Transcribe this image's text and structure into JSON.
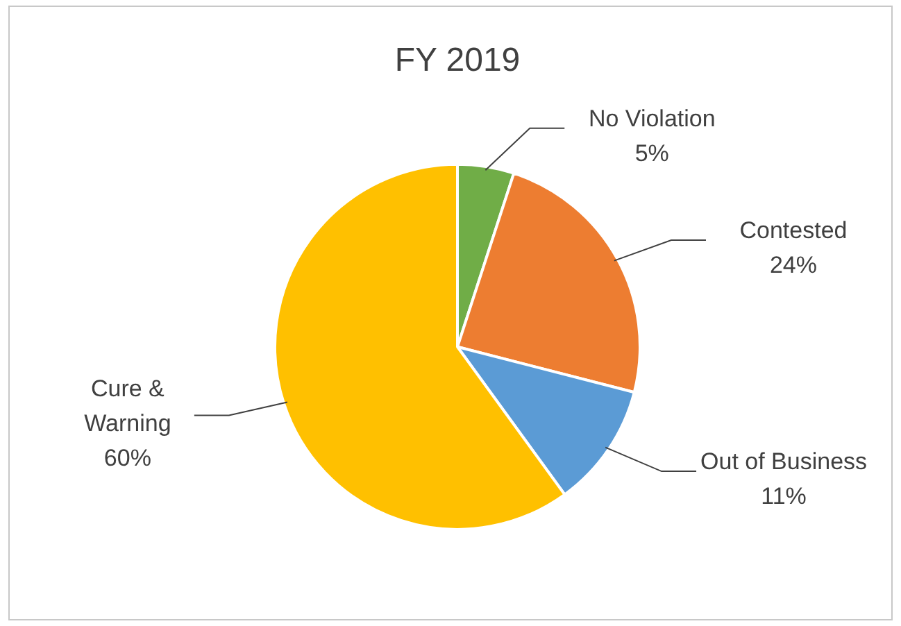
{
  "chart_data": {
    "type": "pie",
    "title": "FY 2019",
    "categories": [
      "No Violation",
      "Contested",
      "Out of Business",
      "Cure & Warning"
    ],
    "values": [
      5,
      24,
      11,
      60
    ],
    "value_labels": [
      "5%",
      "24%",
      "11%",
      "60%"
    ],
    "colors": [
      "#70ad47",
      "#ed7d31",
      "#5b9bd5",
      "#ffc000"
    ],
    "legend": false
  }
}
